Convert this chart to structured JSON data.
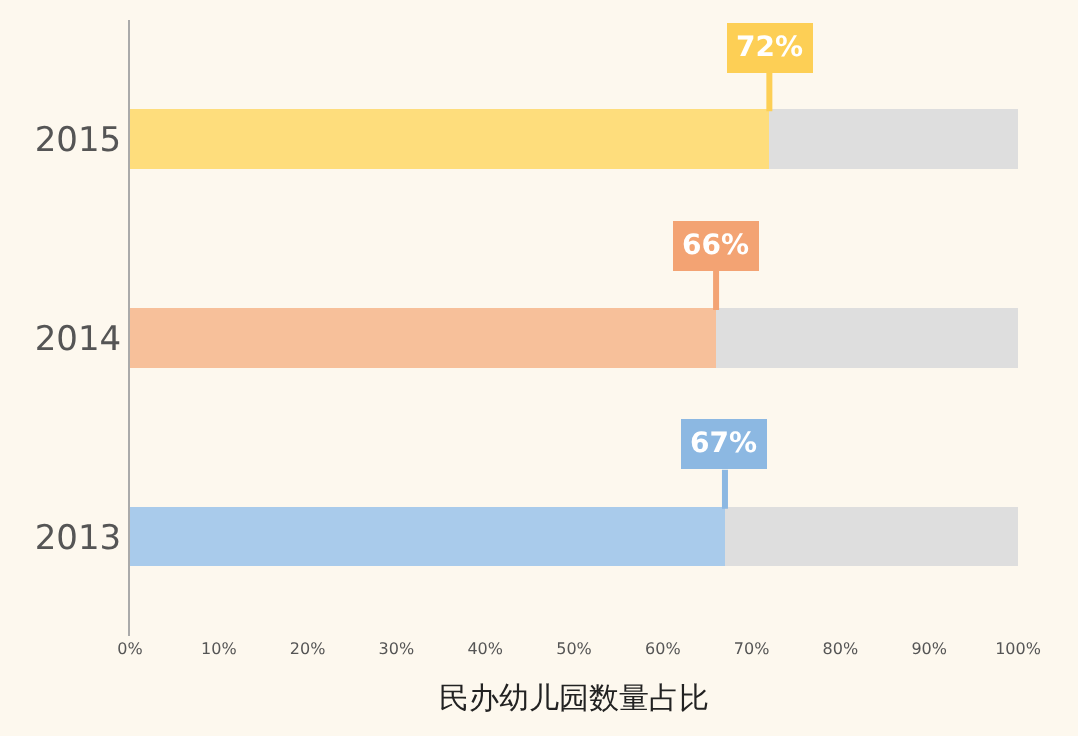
{
  "chart_data": {
    "type": "bar",
    "orientation": "horizontal",
    "stacked": true,
    "xlabel": "民办幼儿园数量占比",
    "categories": [
      "2015",
      "2014",
      "2013"
    ],
    "series": [
      {
        "colors": [
          "#fedd7c",
          "#f7c09a",
          "#a9cbeb"
        ],
        "values": [
          72,
          66,
          67
        ],
        "value_labels": [
          "72%",
          "66%",
          "67%"
        ]
      },
      {
        "color": "#dedede",
        "values": [
          28,
          34,
          33
        ]
      }
    ],
    "xlim": [
      0,
      100
    ],
    "xticks": [
      {
        "value": 0,
        "label": "0%"
      },
      {
        "value": 10,
        "label": "10%"
      },
      {
        "value": 20,
        "label": "20%"
      },
      {
        "value": 30,
        "label": "30%"
      },
      {
        "value": 40,
        "label": "40%"
      },
      {
        "value": 50,
        "label": "50%"
      },
      {
        "value": 60,
        "label": "60%"
      },
      {
        "value": 70,
        "label": "70%"
      },
      {
        "value": 80,
        "label": "80%"
      },
      {
        "value": 90,
        "label": "90%"
      },
      {
        "value": 100,
        "label": "100%"
      }
    ],
    "grid": false
  }
}
